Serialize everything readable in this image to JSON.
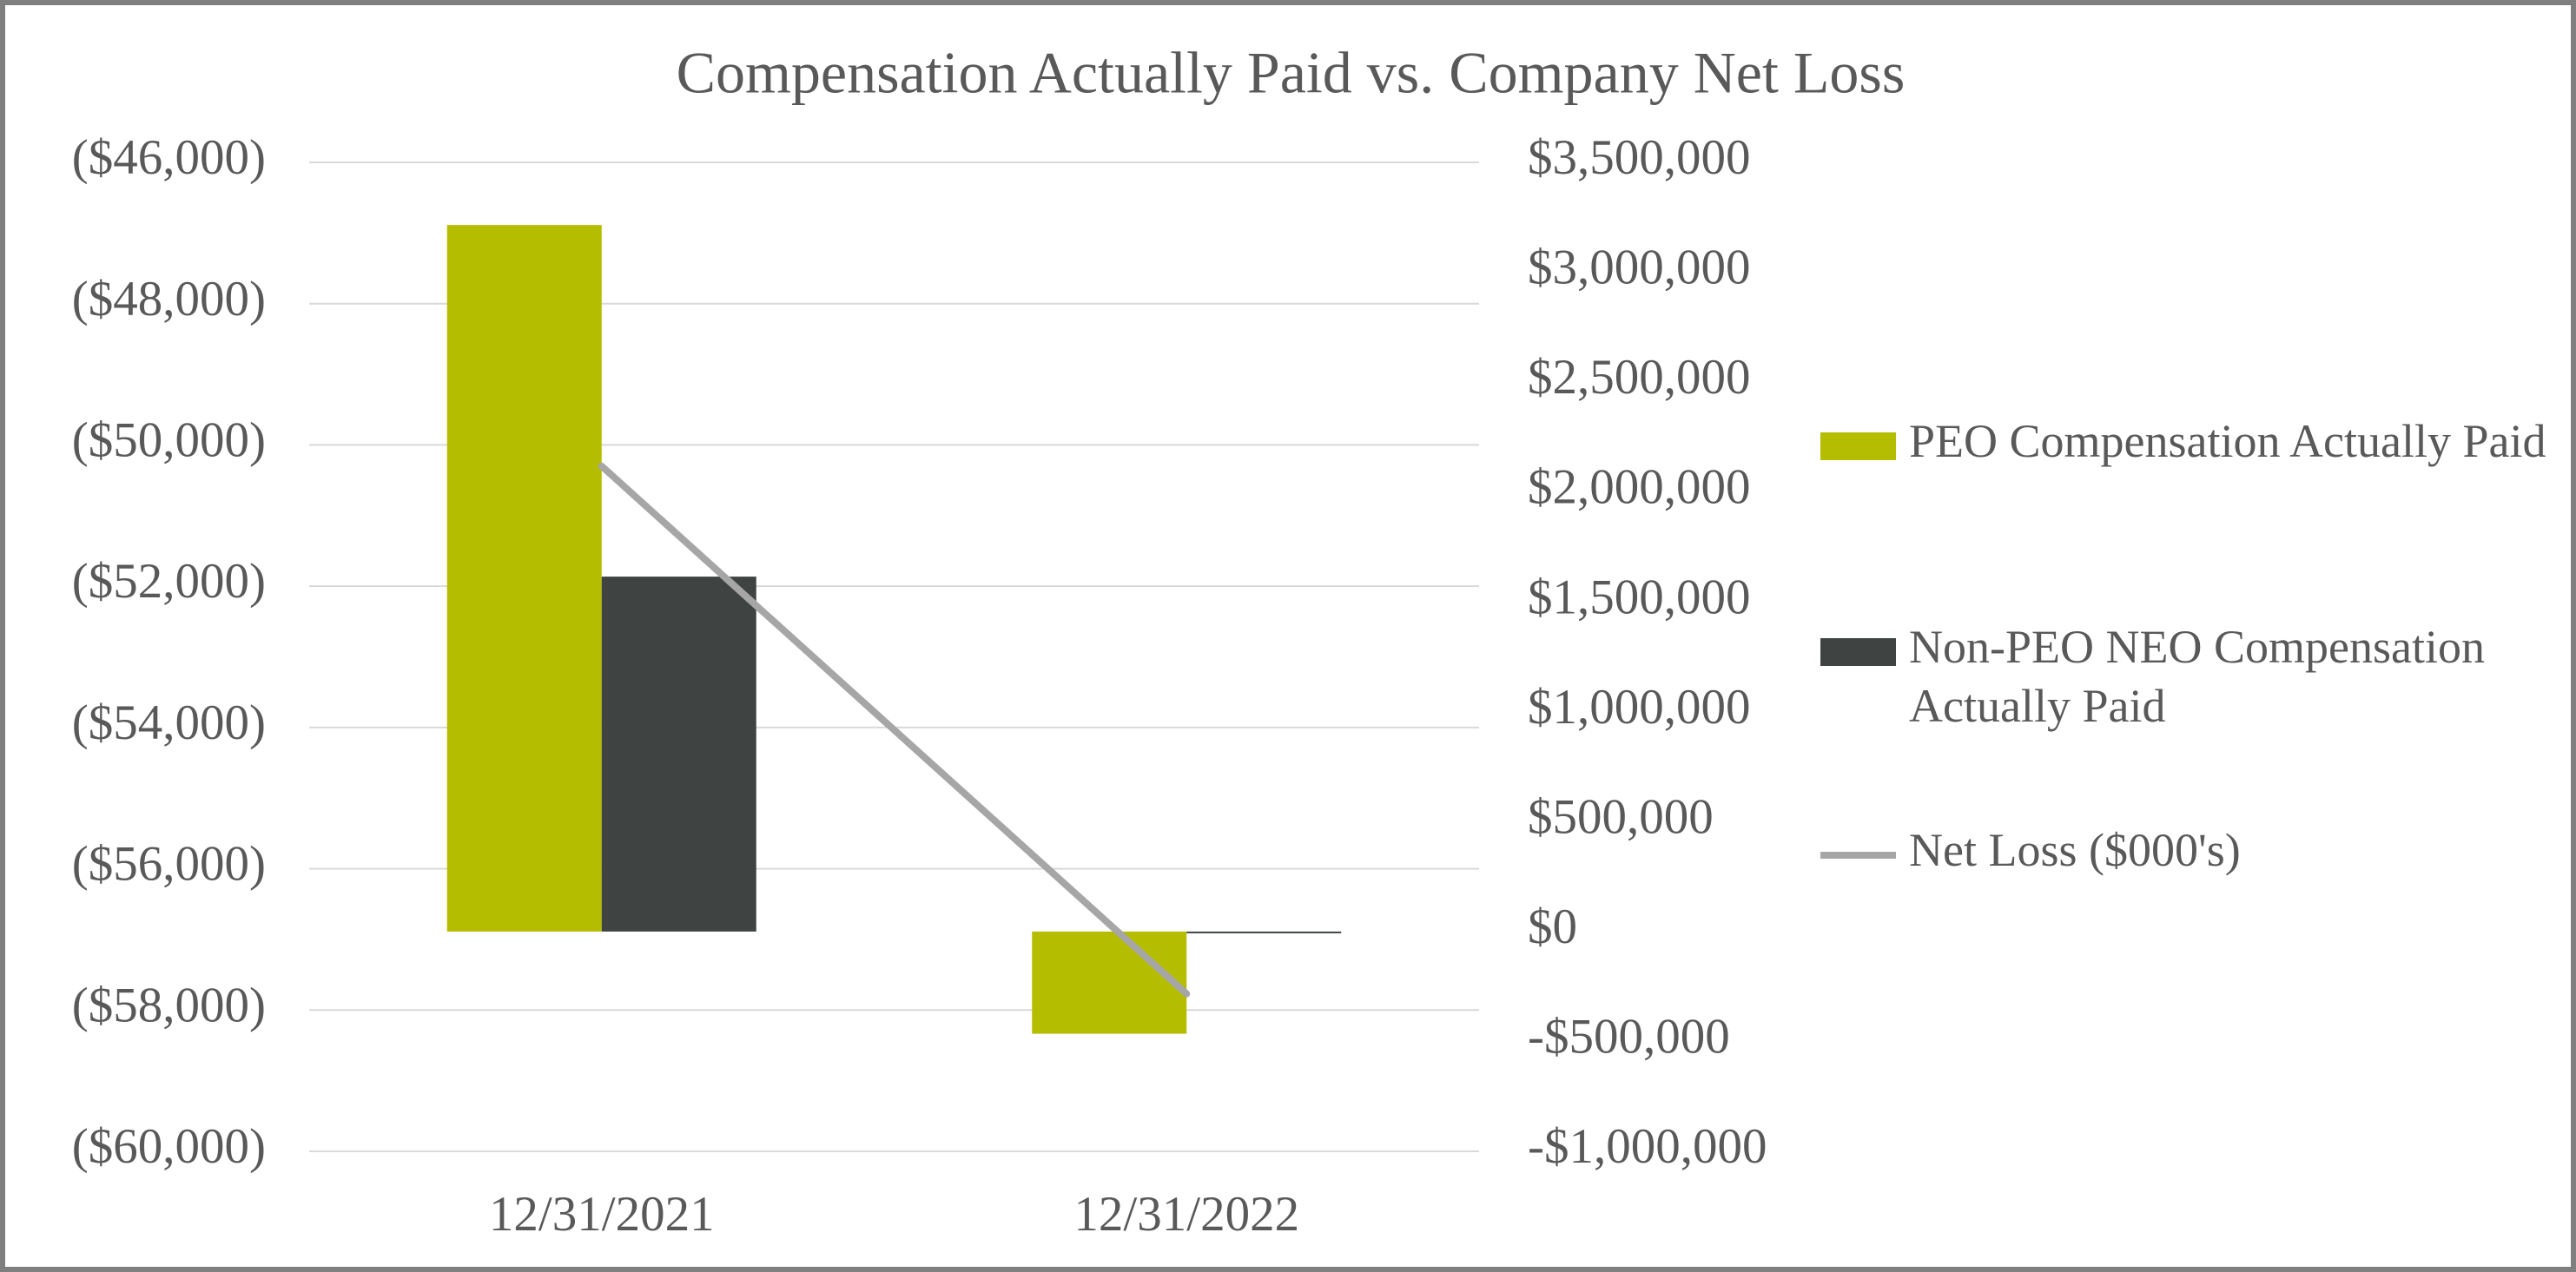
{
  "chart_data": {
    "type": "bar",
    "title": "Compensation Actually Paid vs. Company Net Loss",
    "categories": [
      "12/31/2021",
      "12/31/2022"
    ],
    "series": [
      {
        "name": "PEO Compensation Actually Paid",
        "color": "#b5bd00",
        "type": "bar",
        "axis": "y2",
        "values": [
          3215000,
          -465000
        ]
      },
      {
        "name": "Non-PEO NEO Compensation Actually Paid",
        "color": "#3f4443",
        "type": "bar",
        "axis": "y2",
        "values": [
          1615000,
          0
        ]
      },
      {
        "name": "Net Loss ($000's)",
        "color": "#a6a6a6",
        "type": "line",
        "axis": "y",
        "values": [
          -50300,
          -57770
        ]
      }
    ],
    "ylim": [
      -60000,
      -46000
    ],
    "yticks": [
      {
        "value": -46000,
        "label": "($46,000)"
      },
      {
        "value": -48000,
        "label": "($48,000)"
      },
      {
        "value": -50000,
        "label": "($50,000)"
      },
      {
        "value": -52000,
        "label": "($52,000)"
      },
      {
        "value": -54000,
        "label": "($54,000)"
      },
      {
        "value": -56000,
        "label": "($56,000)"
      },
      {
        "value": -58000,
        "label": "($58,000)"
      },
      {
        "value": -60000,
        "label": "($60,000)"
      }
    ],
    "y2lim": [
      -1000000,
      3500000
    ],
    "y2ticks": [
      {
        "value": 3500000,
        "label": "$3,500,000"
      },
      {
        "value": 3000000,
        "label": "$3,000,000"
      },
      {
        "value": 2500000,
        "label": "$2,500,000"
      },
      {
        "value": 2000000,
        "label": "$2,000,000"
      },
      {
        "value": 1500000,
        "label": "$1,500,000"
      },
      {
        "value": 1000000,
        "label": "$1,000,000"
      },
      {
        "value": 500000,
        "label": "$500,000"
      },
      {
        "value": 0,
        "label": "$0"
      },
      {
        "value": -500000,
        "label": "-$500,000"
      },
      {
        "value": -1000000,
        "label": "-$1,000,000"
      }
    ],
    "grid": true,
    "legend": "right"
  }
}
